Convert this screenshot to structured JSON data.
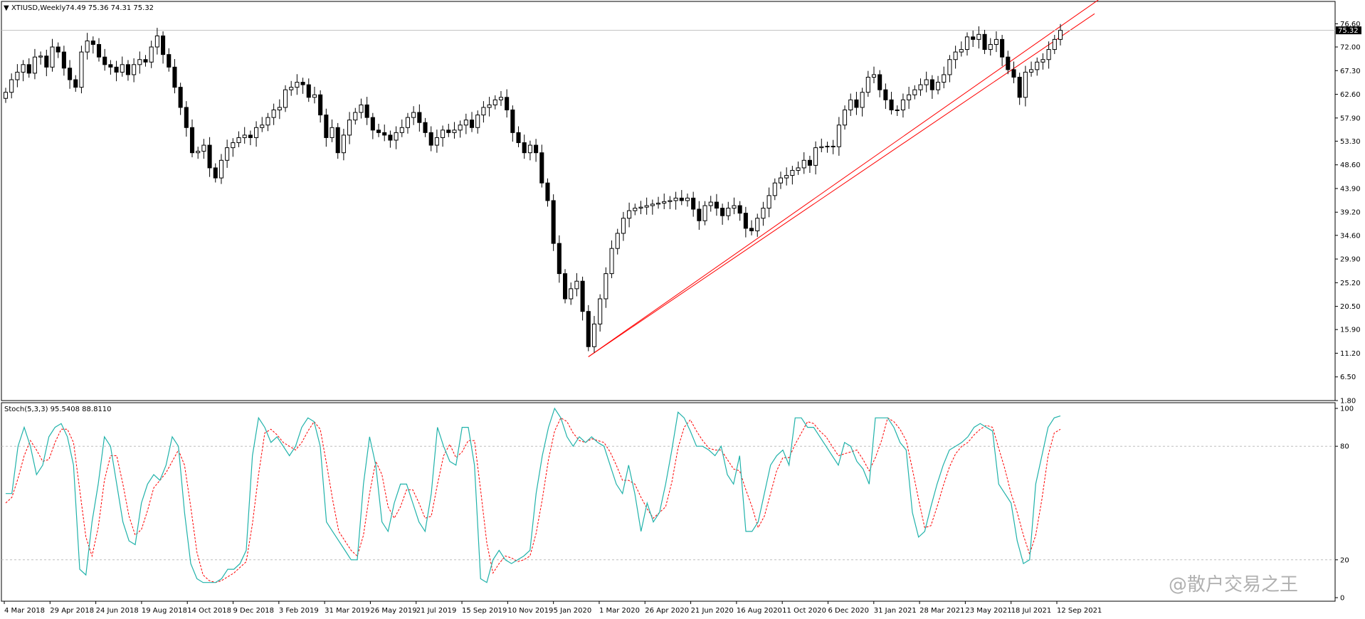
{
  "window": {
    "title": "XTIUSD,Weekly",
    "ohlc": "74.49 75.36 74.31 75.32",
    "current_price_label": "75.32"
  },
  "indicator": {
    "title": "Stoch(5,3,3) 95.5408 88.8110",
    "levels": [
      20,
      80
    ],
    "axis_ticks": [
      "100",
      "80",
      "20",
      "0"
    ],
    "main_color": "#20b2aa",
    "signal_color": "#ff0000"
  },
  "watermark": "@散户交易之王",
  "colors": {
    "bull": "#ffffff",
    "bear": "#000000",
    "trendline": "#ff0000",
    "current_price_line": "#c0c0c0",
    "current_price_tag": "#000000"
  },
  "chart_data": [
    {
      "type": "candlestick",
      "symbol": "XTIUSD",
      "timeframe": "Weekly",
      "ylim": [
        1.8,
        78.5
      ],
      "y_ticks": [
        "76.60",
        "72.00",
        "67.30",
        "62.60",
        "57.90",
        "53.30",
        "48.60",
        "43.90",
        "39.20",
        "34.60",
        "29.90",
        "25.20",
        "20.50",
        "15.90",
        "11.20",
        "6.50",
        "1.80"
      ],
      "x_ticks": [
        "4 Mar 2018",
        "29 Apr 2018",
        "24 Jun 2018",
        "19 Aug 2018",
        "14 Oct 2018",
        "9 Dec 2018",
        "3 Feb 2019",
        "31 Mar 2019",
        "26 May 2019",
        "21 Jul 2019",
        "15 Sep 2019",
        "10 Nov 2019",
        "5 Jan 2020",
        "1 Mar 2020",
        "26 Apr 2020",
        "21 Jun 2020",
        "16 Aug 2020",
        "11 Oct 2020",
        "6 Dec 2020",
        "31 Jan 2021",
        "28 Mar 2021",
        "23 May 2021",
        "18 Jul 2021",
        "12 Sep 2021"
      ],
      "close": [
        63.0,
        65.5,
        67.0,
        68.5,
        66.8,
        70.0,
        70.2,
        68.0,
        72.0,
        71.0,
        67.8,
        65.5,
        64.0,
        71.0,
        73.2,
        72.5,
        70.0,
        68.5,
        68.0,
        67.0,
        68.5,
        66.5,
        68.5,
        69.5,
        69.0,
        72.0,
        74.2,
        70.5,
        68.0,
        64.0,
        60.0,
        56.0,
        51.0,
        51.3,
        52.5,
        48.0,
        46.0,
        49.5,
        52.0,
        53.0,
        54.0,
        54.5,
        54.0,
        56.0,
        56.5,
        58.0,
        59.5,
        60.0,
        63.5,
        64.0,
        65.0,
        64.5,
        62.0,
        62.5,
        58.5,
        54.0,
        56.0,
        51.0,
        54.5,
        57.5,
        59.0,
        60.5,
        58.0,
        55.5,
        55.0,
        54.5,
        53.5,
        55.0,
        56.0,
        58.0,
        59.0,
        57.0,
        55.0,
        52.5,
        54.0,
        55.5,
        55.0,
        55.5,
        56.5,
        57.5,
        56.0,
        58.5,
        60.0,
        60.5,
        61.5,
        62.0,
        59.5,
        55.0,
        53.0,
        51.0,
        52.5,
        51.0,
        45.0,
        41.5,
        33.0,
        27.0,
        22.0,
        24.0,
        25.5,
        19.5,
        12.5,
        17.0,
        22.0,
        27.0,
        32.0,
        35.0,
        38.0,
        39.5,
        40.0,
        40.2,
        40.5,
        40.8,
        41.0,
        41.3,
        41.5,
        42.0,
        41.5,
        42.0,
        39.8,
        37.5,
        40.5,
        41.2,
        40.0,
        38.5,
        40.0,
        40.5,
        39.0,
        36.0,
        35.5,
        38.0,
        40.0,
        42.5,
        45.0,
        46.0,
        46.5,
        47.5,
        48.0,
        49.5,
        48.5,
        52.0,
        52.2,
        52.3,
        52.2,
        56.5,
        59.5,
        61.5,
        60.0,
        63.0,
        66.0,
        66.5,
        63.5,
        61.5,
        59.5,
        59.5,
        61.5,
        62.5,
        63.5,
        64.5,
        65.5,
        63.5,
        65.0,
        66.5,
        69.5,
        71.0,
        71.5,
        74.0,
        73.5,
        74.5,
        71.5,
        72.5,
        73.5,
        70.0,
        67.5,
        66.0,
        62.0,
        67.0,
        67.5,
        69.0,
        69.5,
        71.5,
        73.5,
        75.3
      ]
    },
    {
      "type": "line",
      "title": "Stoch(5,3,3) 95.5408 88.8110",
      "ylim": [
        0,
        100
      ],
      "reference_lines": [
        20,
        80
      ],
      "series": [
        {
          "name": "%K",
          "values": [
            55,
            55,
            80,
            90,
            80,
            65,
            70,
            85,
            90,
            92,
            85,
            70,
            15,
            12,
            40,
            60,
            85,
            80,
            60,
            40,
            30,
            28,
            50,
            60,
            65,
            62,
            70,
            85,
            80,
            45,
            18,
            10,
            8,
            8,
            8,
            10,
            15,
            15,
            18,
            25,
            75,
            95,
            90,
            82,
            85,
            80,
            75,
            80,
            90,
            95,
            93,
            80,
            40,
            35,
            30,
            25,
            20,
            20,
            60,
            85,
            70,
            40,
            35,
            50,
            60,
            60,
            50,
            40,
            35,
            55,
            90,
            80,
            72,
            70,
            90,
            90,
            70,
            10,
            8,
            20,
            25,
            20,
            18,
            20,
            22,
            25,
            55,
            75,
            90,
            100,
            95,
            85,
            80,
            85,
            82,
            85,
            82,
            80,
            70,
            60,
            55,
            70,
            55,
            35,
            50,
            40,
            45,
            60,
            78,
            98,
            95,
            88,
            80,
            80,
            78,
            75,
            80,
            65,
            60,
            75,
            35,
            35,
            40,
            55,
            70,
            75,
            78,
            70,
            95,
            95,
            90,
            90,
            85,
            80,
            75,
            70,
            82,
            80,
            72,
            68,
            60,
            95,
            95,
            95,
            90,
            82,
            78,
            45,
            32,
            35,
            48,
            60,
            70,
            78,
            80,
            82,
            85,
            90,
            92,
            90,
            88,
            60,
            55,
            50,
            30,
            18,
            20,
            60,
            75,
            90,
            95,
            96
          ]
        },
        {
          "name": "%D",
          "values": [
            50,
            53,
            63,
            75,
            83,
            78,
            72,
            73,
            82,
            89,
            89,
            82,
            57,
            32,
            22,
            37,
            62,
            75,
            75,
            60,
            43,
            33,
            36,
            46,
            58,
            62,
            66,
            72,
            78,
            70,
            48,
            24,
            12,
            9,
            8,
            9,
            11,
            13,
            16,
            19,
            39,
            65,
            87,
            89,
            86,
            82,
            80,
            78,
            82,
            88,
            93,
            89,
            71,
            52,
            35,
            30,
            25,
            22,
            33,
            55,
            72,
            65,
            48,
            42,
            48,
            57,
            57,
            50,
            42,
            43,
            60,
            75,
            81,
            74,
            77,
            83,
            83,
            57,
            29,
            13,
            18,
            22,
            21,
            19,
            20,
            22,
            34,
            52,
            73,
            88,
            95,
            93,
            87,
            83,
            82,
            84,
            83,
            82,
            77,
            70,
            62,
            62,
            60,
            53,
            47,
            42,
            45,
            48,
            61,
            79,
            90,
            94,
            88,
            83,
            79,
            78,
            78,
            73,
            68,
            67,
            57,
            48,
            37,
            43,
            55,
            67,
            74,
            74,
            81,
            87,
            93,
            92,
            88,
            85,
            80,
            75,
            76,
            77,
            78,
            73,
            67,
            74,
            83,
            95,
            93,
            89,
            83,
            68,
            52,
            37,
            38,
            48,
            59,
            69,
            76,
            80,
            82,
            86,
            89,
            91,
            90,
            79,
            68,
            55,
            45,
            33,
            23,
            33,
            52,
            75,
            87,
            89
          ]
        }
      ]
    }
  ]
}
